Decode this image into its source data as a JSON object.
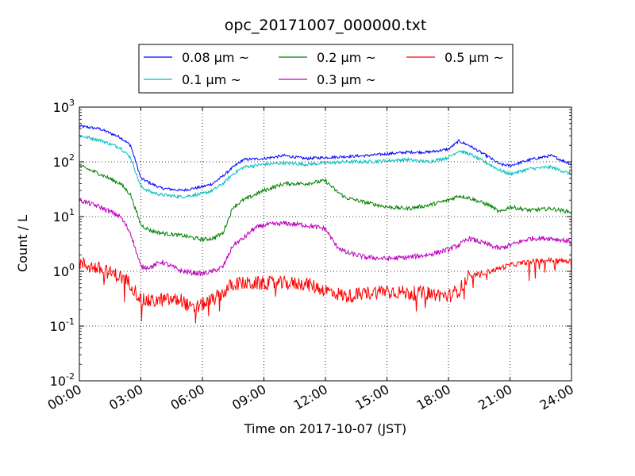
{
  "chart_data": {
    "type": "line",
    "title": "opc_20171007_000000.txt",
    "xlabel": "Time on 2017-10-07 (JST)",
    "ylabel": "Count / L",
    "x_unit": "hour",
    "xlim": [
      0,
      24
    ],
    "x_ticks": [
      0,
      3,
      6,
      9,
      12,
      15,
      18,
      21,
      24
    ],
    "x_tick_labels": [
      "00:00",
      "03:00",
      "06:00",
      "09:00",
      "12:00",
      "15:00",
      "18:00",
      "21:00",
      "24:00"
    ],
    "y_scale": "log",
    "ylim": [
      0.01,
      1000
    ],
    "y_ticks": [
      0.01,
      0.1,
      1,
      10,
      100,
      1000
    ],
    "y_tick_labels": [
      {
        "base": "10",
        "exp": "-2"
      },
      {
        "base": "10",
        "exp": "-1"
      },
      {
        "base": "10",
        "exp": "0"
      },
      {
        "base": "10",
        "exp": "1"
      },
      {
        "base": "10",
        "exp": "2"
      },
      {
        "base": "10",
        "exp": "3"
      }
    ],
    "grid": true,
    "legend_position": "top-center",
    "series": [
      {
        "name": "0.08 μm ~",
        "color": "#0000ff",
        "x": [
          0,
          1,
          2,
          2.5,
          3,
          3.5,
          4,
          5,
          6,
          6.5,
          7,
          7.5,
          8,
          9,
          10,
          11,
          12,
          13,
          14,
          15,
          16,
          17,
          18,
          18.5,
          19,
          20,
          20.5,
          21,
          22,
          23,
          24
        ],
        "y": [
          450,
          400,
          280,
          200,
          50,
          40,
          33,
          30,
          35,
          40,
          55,
          80,
          110,
          115,
          130,
          115,
          120,
          125,
          130,
          140,
          150,
          150,
          170,
          240,
          200,
          120,
          90,
          85,
          110,
          130,
          90
        ]
      },
      {
        "name": "0.1 μm ~",
        "color": "#00bfbf",
        "x": [
          0,
          1,
          2,
          2.5,
          3,
          3.5,
          4,
          5,
          6,
          6.5,
          7,
          7.5,
          8,
          9,
          10,
          11,
          12,
          13,
          14,
          15,
          16,
          17,
          18,
          18.5,
          19,
          20,
          20.5,
          21,
          22,
          23,
          24
        ],
        "y": [
          300,
          250,
          180,
          120,
          35,
          28,
          25,
          23,
          26,
          30,
          40,
          60,
          80,
          90,
          95,
          90,
          95,
          100,
          100,
          105,
          110,
          100,
          120,
          160,
          140,
          90,
          70,
          60,
          75,
          80,
          60
        ]
      },
      {
        "name": "0.2 μm ~",
        "color": "#008000",
        "x": [
          0,
          1,
          2,
          2.5,
          3,
          3.5,
          4,
          5,
          6,
          6.5,
          7,
          7.5,
          8,
          9,
          10,
          11,
          12,
          12.5,
          13,
          14,
          15,
          16,
          17,
          18,
          18.5,
          19,
          20,
          20.5,
          21,
          22,
          23,
          24
        ],
        "y": [
          85,
          60,
          40,
          25,
          7,
          5.5,
          5,
          4.5,
          3.8,
          4,
          5,
          15,
          20,
          30,
          40,
          40,
          45,
          30,
          22,
          18,
          15,
          14,
          16,
          20,
          24,
          22,
          16,
          12,
          15,
          13,
          14,
          12
        ]
      },
      {
        "name": "0.3 μm ~",
        "color": "#bf00bf",
        "x": [
          0,
          1,
          2,
          2.5,
          3,
          3.5,
          4,
          5,
          6,
          6.5,
          7,
          7.5,
          8,
          8.5,
          9,
          10,
          11,
          12,
          12.5,
          13,
          14,
          15,
          16,
          17,
          18,
          18.5,
          19,
          20,
          20.5,
          21,
          22,
          23,
          24
        ],
        "y": [
          20,
          15,
          10,
          5,
          1.2,
          1.2,
          1.5,
          1.0,
          0.9,
          1.0,
          1.2,
          3,
          4,
          6,
          7,
          7.5,
          7,
          6,
          3,
          2.2,
          1.8,
          1.7,
          1.8,
          2.0,
          2.5,
          3,
          4,
          3,
          2.6,
          3,
          4,
          4,
          3.5
        ]
      },
      {
        "name": "0.5 μm ~",
        "color": "#ff0000",
        "x": [
          0,
          1,
          2,
          2.5,
          3,
          3.5,
          4,
          5,
          5.5,
          6,
          6.5,
          7,
          7.5,
          8,
          9,
          10,
          11,
          12,
          12.5,
          13,
          14,
          15,
          16,
          17,
          18,
          18.5,
          19,
          20,
          21,
          22,
          23,
          24
        ],
        "y": [
          1.4,
          1.1,
          0.8,
          0.6,
          0.3,
          0.28,
          0.3,
          0.3,
          0.2,
          0.25,
          0.3,
          0.4,
          0.6,
          0.6,
          0.6,
          0.6,
          0.6,
          0.45,
          0.4,
          0.35,
          0.4,
          0.45,
          0.4,
          0.4,
          0.35,
          0.45,
          0.8,
          1.0,
          1.3,
          1.5,
          1.6,
          1.5
        ]
      }
    ]
  }
}
